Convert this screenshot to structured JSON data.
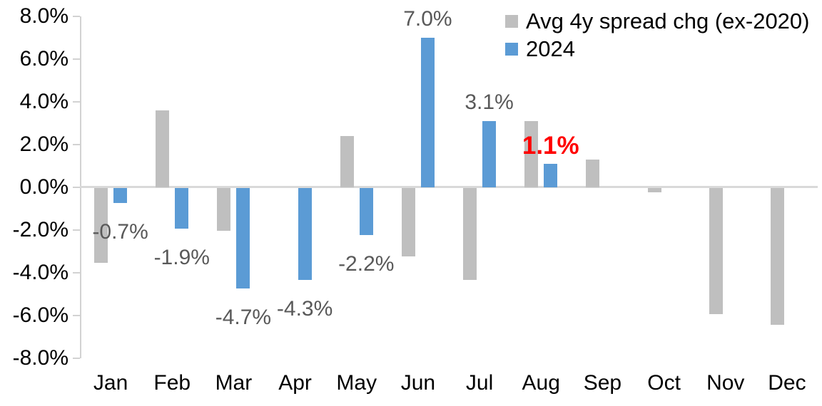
{
  "chart_data": {
    "type": "bar",
    "title": "",
    "xlabel": "",
    "ylabel": "",
    "categories": [
      "Jan",
      "Feb",
      "Mar",
      "Apr",
      "May",
      "Jun",
      "Jul",
      "Aug",
      "Sep",
      "Oct",
      "Nov",
      "Dec"
    ],
    "series": [
      {
        "name": "Avg 4y spread chg (ex-2020)",
        "color": "#bfbfbf",
        "values": [
          -3.5,
          3.6,
          -2.0,
          0.0,
          2.4,
          -3.2,
          -4.3,
          3.1,
          1.3,
          -0.2,
          -5.9,
          -6.4
        ]
      },
      {
        "name": "2024",
        "color": "#5b9bd5",
        "values": [
          -0.7,
          -1.9,
          -4.7,
          -4.3,
          -2.2,
          7.0,
          3.1,
          1.1,
          null,
          null,
          null,
          null
        ],
        "labels": [
          {
            "text": "-0.7%",
            "color": "#595959"
          },
          {
            "text": "-1.9%",
            "color": "#595959"
          },
          {
            "text": "-4.7%",
            "color": "#595959"
          },
          {
            "text": "-4.3%",
            "color": "#595959"
          },
          {
            "text": "-2.2%",
            "color": "#595959"
          },
          {
            "text": "7.0%",
            "color": "#595959"
          },
          {
            "text": "3.1%",
            "color": "#595959"
          },
          {
            "text": "1.1%",
            "color": "#ff0000",
            "bold": true
          },
          null,
          null,
          null,
          null
        ]
      }
    ],
    "y_ticks": [
      "8.0%",
      "6.0%",
      "4.0%",
      "2.0%",
      "0.0%",
      "-2.0%",
      "-4.0%",
      "-6.0%",
      "-8.0%"
    ],
    "ylim": [
      -8,
      8
    ],
    "y_tick_step": 2,
    "grid": false,
    "legend_position": "top-right",
    "colors": {
      "axis_line": "#d2d2d2",
      "zero_line": "#d9d9d9",
      "axis_text": "#000000",
      "data_label_default": "#595959",
      "data_label_highlight": "#ff0000"
    }
  }
}
